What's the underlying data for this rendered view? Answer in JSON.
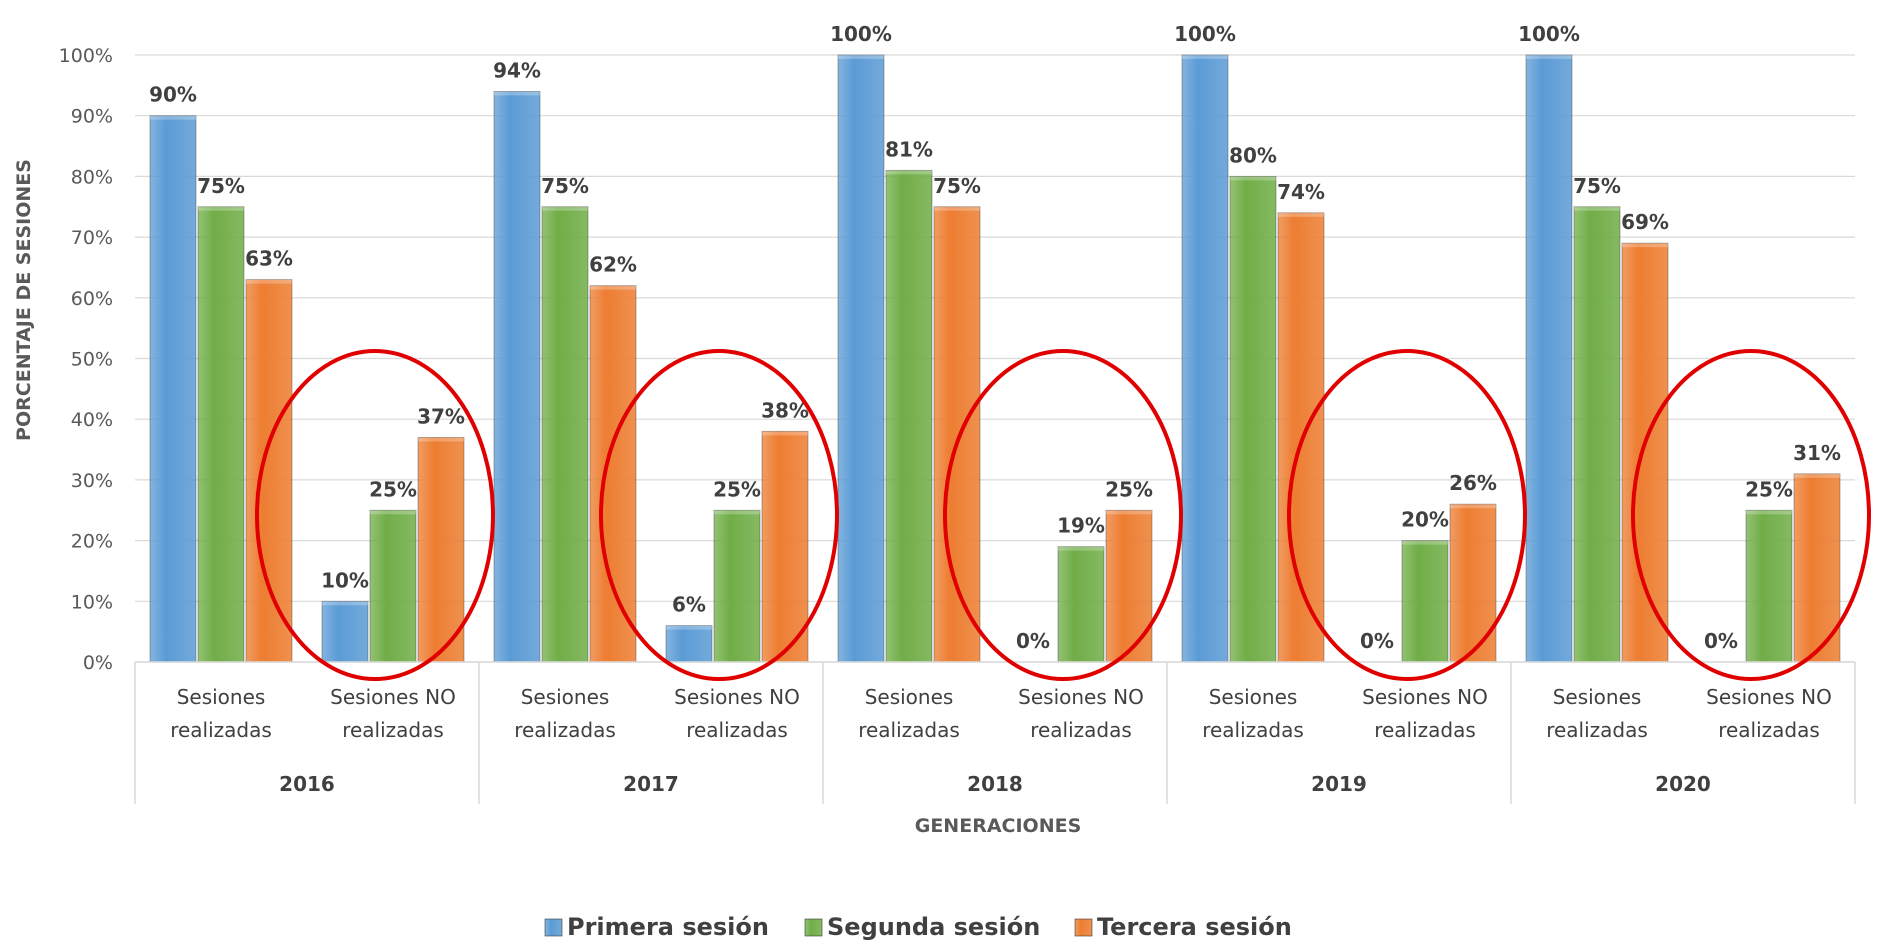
{
  "chart_data": {
    "type": "bar",
    "title": "",
    "xlabel": "GENERACIONES",
    "ylabel": "PORCENTAJE DE SESIONES",
    "ylim": [
      0,
      100
    ],
    "y_ticks": [
      "0%",
      "10%",
      "20%",
      "30%",
      "40%",
      "50%",
      "60%",
      "70%",
      "80%",
      "90%",
      "100%"
    ],
    "grid": true,
    "legend_position": "bottom",
    "groups": [
      "2016",
      "2017",
      "2018",
      "2019",
      "2020"
    ],
    "categories": [
      {
        "group": "2016",
        "label": [
          "Sesiones",
          "realizadas"
        ]
      },
      {
        "group": "2016",
        "label": [
          "Sesiones NO",
          "realizadas"
        ]
      },
      {
        "group": "2017",
        "label": [
          "Sesiones",
          "realizadas"
        ]
      },
      {
        "group": "2017",
        "label": [
          "Sesiones NO",
          "realizadas"
        ]
      },
      {
        "group": "2018",
        "label": [
          "Sesiones",
          "realizadas"
        ]
      },
      {
        "group": "2018",
        "label": [
          "Sesiones NO",
          "realizadas"
        ]
      },
      {
        "group": "2019",
        "label": [
          "Sesiones",
          "realizadas"
        ]
      },
      {
        "group": "2019",
        "label": [
          "Sesiones NO",
          "realizadas"
        ]
      },
      {
        "group": "2020",
        "label": [
          "Sesiones",
          "realizadas"
        ]
      },
      {
        "group": "2020",
        "label": [
          "Sesiones NO",
          "realizadas"
        ]
      }
    ],
    "series": [
      {
        "name": "Primera sesión",
        "color": "#5B9BD5",
        "values": [
          90,
          10,
          94,
          6,
          100,
          0,
          100,
          0,
          100,
          0
        ],
        "labels": [
          "90%",
          "10%",
          "94%",
          "6%",
          "100%",
          "0%",
          "100%",
          "0%",
          "100%",
          "0%"
        ]
      },
      {
        "name": "Segunda sesión",
        "color": "#70AD47",
        "values": [
          75,
          25,
          75,
          25,
          81,
          19,
          80,
          20,
          75,
          25
        ],
        "labels": [
          "75%",
          "25%",
          "75%",
          "25%",
          "81%",
          "19%",
          "80%",
          "20%",
          "75%",
          "25%"
        ]
      },
      {
        "name": "Tercera sesión",
        "color": "#ED7D31",
        "values": [
          63,
          37,
          62,
          38,
          75,
          25,
          74,
          26,
          69,
          31
        ],
        "labels": [
          "63%",
          "37%",
          "62%",
          "38%",
          "75%",
          "25%",
          "74%",
          "26%",
          "69%",
          "31%"
        ]
      }
    ],
    "highlight_color": "#E00000",
    "highlighted_categories": [
      1,
      3,
      5,
      7,
      9
    ]
  }
}
